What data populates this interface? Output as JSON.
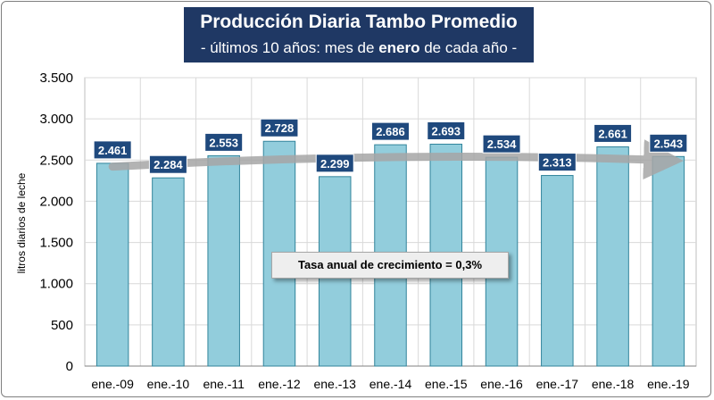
{
  "title": {
    "main": "Producción Diaria Tambo Promedio",
    "sub_before": "- últimos 10 años: mes de ",
    "sub_bold": "enero",
    "sub_after": " de cada año -"
  },
  "annotation": "Tasa anual de crecimiento = 0,3%",
  "colors": {
    "title_bg": "#1f3864",
    "bar_fill": "#92cddc",
    "bar_stroke": "#31849b",
    "label_bg": "#1f497d",
    "trend": "#a6a6a6"
  },
  "chart_data": {
    "type": "bar",
    "categories": [
      "ene.-09",
      "ene.-10",
      "ene.-11",
      "ene.-12",
      "ene.-13",
      "ene.-14",
      "ene.-15",
      "ene.-16",
      "ene.-17",
      "ene.-18",
      "ene.-19"
    ],
    "values": [
      2461,
      2284,
      2553,
      2728,
      2299,
      2686,
      2693,
      2534,
      2313,
      2661,
      2543
    ],
    "value_labels": [
      "2.461",
      "2.284",
      "2.553",
      "2.728",
      "2.299",
      "2.686",
      "2.693",
      "2.534",
      "2.313",
      "2.661",
      "2.543"
    ],
    "ylabel": "litros diarios de leche",
    "xlabel": "",
    "ylim": [
      0,
      3500
    ],
    "yticks": [
      0,
      500,
      1000,
      1500,
      2000,
      2500,
      3000,
      3500
    ],
    "ytick_labels": [
      "0",
      "500",
      "1.000",
      "1.500",
      "2.000",
      "2.500",
      "3.000",
      "3.500"
    ],
    "grid": true,
    "legend": false,
    "trend_line": {
      "start": 2420,
      "end": 2500,
      "growth_label": "0,3%"
    }
  }
}
